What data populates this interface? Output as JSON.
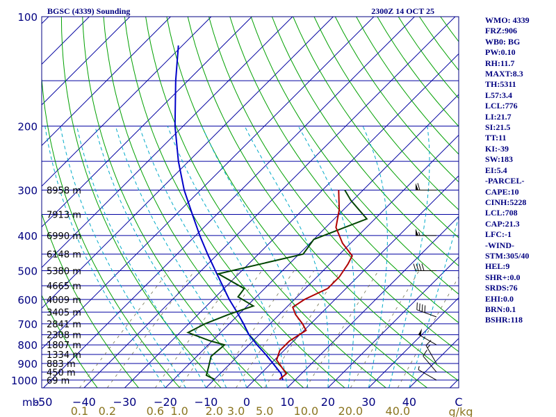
{
  "chart_data": {
    "type": "skew-t sounding",
    "title": "BGSC (4339) Sounding",
    "timestamp": "2300Z 14 OCT 25",
    "pressure_unit_label": "mb",
    "pressure_levels": [
      100,
      200,
      300,
      400,
      500,
      600,
      700,
      800,
      900,
      1000
    ],
    "minor_isobars": [
      150,
      250,
      350,
      450,
      550,
      650,
      750,
      850,
      950
    ],
    "temp_ticks": [
      -50,
      -40,
      -30,
      -20,
      -10,
      0,
      10,
      20,
      30,
      40
    ],
    "temp_tick_labels": [
      "-50",
      "−40",
      "−30",
      "−20",
      "−10",
      "0",
      "10",
      "20",
      "30",
      "40"
    ],
    "temp_unit_label": "C",
    "mixing_ratio_labels": [
      {
        "value": 0.1,
        "label": "0.1"
      },
      {
        "value": 0.2,
        "label": "0.2"
      },
      {
        "value": 0.6,
        "label": "0.6"
      },
      {
        "value": 1.0,
        "label": "1.0"
      },
      {
        "value": 2.0,
        "label": "2.0"
      },
      {
        "value": 3.0,
        "label": "3.0"
      },
      {
        "value": 5.0,
        "label": "5.0"
      },
      {
        "value": 10.0,
        "label": "10.0"
      },
      {
        "value": 20.0,
        "label": "20.0"
      },
      {
        "value": 40.0,
        "label": "40.0"
      }
    ],
    "mixing_ratio_unit": "g/kg",
    "height_labels": [
      {
        "p": 300,
        "label": "8958 m"
      },
      {
        "p": 350,
        "label": "7913 m"
      },
      {
        "p": 400,
        "label": "6990 m"
      },
      {
        "p": 450,
        "label": "6148 m"
      },
      {
        "p": 500,
        "label": "5380 m"
      },
      {
        "p": 550,
        "label": "4665 m"
      },
      {
        "p": 600,
        "label": "4009 m"
      },
      {
        "p": 650,
        "label": "3405 m"
      },
      {
        "p": 700,
        "label": "2841 m"
      },
      {
        "p": 750,
        "label": "2308 m"
      },
      {
        "p": 800,
        "label": "1807 m"
      },
      {
        "p": 850,
        "label": "1334 m"
      },
      {
        "p": 900,
        "label": "883 m"
      },
      {
        "p": 950,
        "label": "450 m"
      },
      {
        "p": 1000,
        "label": "69 m"
      }
    ],
    "temperature_profile": [
      {
        "p": 995,
        "t": 6.0
      },
      {
        "p": 960,
        "t": 6.3
      },
      {
        "p": 925,
        "t": 3.8
      },
      {
        "p": 880,
        "t": 0.5
      },
      {
        "p": 830,
        "t": -1.0
      },
      {
        "p": 780,
        "t": -1.0
      },
      {
        "p": 730,
        "t": 0.5
      },
      {
        "p": 700,
        "t": -2.0
      },
      {
        "p": 660,
        "t": -6.0
      },
      {
        "p": 630,
        "t": -8.5
      },
      {
        "p": 600,
        "t": -7.5
      },
      {
        "p": 560,
        "t": -4.5
      },
      {
        "p": 520,
        "t": -4.5
      },
      {
        "p": 480,
        "t": -5.5
      },
      {
        "p": 455,
        "t": -6.5
      },
      {
        "p": 420,
        "t": -12.0
      },
      {
        "p": 380,
        "t": -17.5
      },
      {
        "p": 340,
        "t": -21.0
      },
      {
        "p": 300,
        "t": -26.0
      }
    ],
    "dewpoint_profile": [
      {
        "p": 995,
        "t": -10.0
      },
      {
        "p": 970,
        "t": -13.0
      },
      {
        "p": 920,
        "t": -14.5
      },
      {
        "p": 860,
        "t": -16.5
      },
      {
        "p": 800,
        "t": -16.0
      },
      {
        "p": 780,
        "t": -20.5
      },
      {
        "p": 740,
        "t": -28.0
      },
      {
        "p": 700,
        "t": -26.0
      },
      {
        "p": 660,
        "t": -22.5
      },
      {
        "p": 625,
        "t": -18.5
      },
      {
        "p": 590,
        "t": -24.5
      },
      {
        "p": 560,
        "t": -25.0
      },
      {
        "p": 510,
        "t": -35.0
      },
      {
        "p": 450,
        "t": -19.0
      },
      {
        "p": 410,
        "t": -20.0
      },
      {
        "p": 360,
        "t": -12.0
      },
      {
        "p": 320,
        "t": -20.5
      },
      {
        "p": 300,
        "t": -24.5
      }
    ],
    "parcel_profile": [
      {
        "p": 1000,
        "t": 7.0
      },
      {
        "p": 960,
        "t": 5.0
      },
      {
        "p": 900,
        "t": 0.5
      },
      {
        "p": 850,
        "t": -3.5
      },
      {
        "p": 800,
        "t": -8.0
      },
      {
        "p": 750,
        "t": -12.5
      },
      {
        "p": 700,
        "t": -16.5
      },
      {
        "p": 650,
        "t": -21.0
      },
      {
        "p": 600,
        "t": -26.0
      },
      {
        "p": 550,
        "t": -31.0
      },
      {
        "p": 500,
        "t": -36.5
      },
      {
        "p": 450,
        "t": -42.5
      },
      {
        "p": 400,
        "t": -49.0
      },
      {
        "p": 350,
        "t": -56.0
      },
      {
        "p": 300,
        "t": -64.0
      },
      {
        "p": 250,
        "t": -72.5
      },
      {
        "p": 200,
        "t": -82.0
      },
      {
        "p": 150,
        "t": -93.0
      },
      {
        "p": 120,
        "t": -101.0
      }
    ],
    "wind_barbs": [
      {
        "p": 1000,
        "dir": 300,
        "kt": 5
      },
      {
        "p": 950,
        "dir": 320,
        "kt": 10
      },
      {
        "p": 900,
        "dir": 330,
        "kt": 15
      },
      {
        "p": 800,
        "dir": 300,
        "kt": 50
      },
      {
        "p": 670,
        "dir": 290,
        "kt": 40
      },
      {
        "p": 500,
        "dir": 270,
        "kt": 40
      },
      {
        "p": 400,
        "dir": 270,
        "kt": 55
      },
      {
        "p": 300,
        "dir": 270,
        "kt": 60
      }
    ]
  },
  "indices": [
    "WMO: 4339",
    "FRZ:906",
    "WB0: BG",
    "PW:0.10",
    "RH:11.7",
    "MAXT:8.3",
    "TH:5311",
    "L57:3.4",
    "LCL:776",
    "LI:21.7",
    "SI:21.5",
    "TT:11",
    "KI:-39",
    "SW:183",
    "EI:5.4",
    "-PARCEL-",
    "CAPE:10",
    "CINH:5228",
    "LCL:708",
    "CAP:21.3",
    "LFC:-1",
    "-WIND-",
    "STM:305/40",
    "HEL:9",
    "SHR+:0.0",
    "SRDS:76",
    "EHI:0.0",
    "BRN:0.1",
    "BSHR:118"
  ],
  "colors": {
    "frame": "#000080",
    "isobar": "#0000a0",
    "isotherm": "#0000a0",
    "dry_adiabat": "#00a000",
    "moist_adiabat": "#00aac8",
    "mixing_ratio": "#707050",
    "temperature": "#b00000",
    "dewpoint": "#004400",
    "parcel": "#0000c8",
    "mixing_label": "#8b7520"
  }
}
